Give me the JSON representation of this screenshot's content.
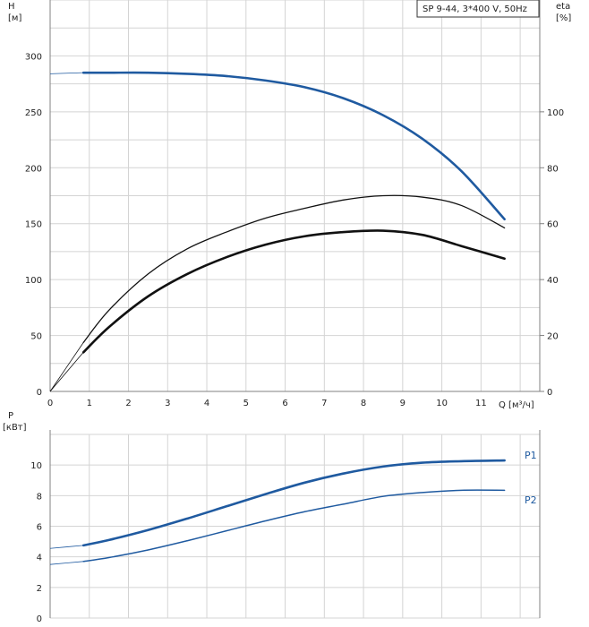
{
  "legend": "SP 9-44, 3*400 V, 50Hz",
  "colors": {
    "blue": "#1f5aa0",
    "black": "#111111",
    "grid": "#d4d4d4",
    "axis": "#808080"
  },
  "chart_data": [
    {
      "type": "line",
      "x_axis": {
        "label": "Q [м³/ч]",
        "range": [
          0,
          12.5
        ],
        "ticks": [
          0,
          1,
          2,
          3,
          4,
          5,
          6,
          7,
          8,
          9,
          10,
          11
        ]
      },
      "y_left": {
        "label_line1": "H",
        "label_line2": "[м]",
        "range": [
          0,
          350
        ],
        "ticks": [
          0,
          50,
          100,
          150,
          200,
          250,
          300
        ]
      },
      "y_right": {
        "label_line1": "eta",
        "label_line2": "[%]",
        "range": [
          0,
          140
        ],
        "ticks": [
          0,
          20,
          40,
          60,
          80,
          100
        ]
      },
      "grid": true,
      "series": [
        {
          "id": "head",
          "axis": "left",
          "color": "#1f5aa0",
          "x": [
            0.85,
            1.5,
            2.5,
            3.5,
            4.5,
            5.5,
            6.5,
            7.5,
            8.5,
            9.5,
            10.5,
            11.6
          ],
          "y": [
            285,
            285,
            285,
            284,
            282,
            278,
            272,
            262,
            247,
            226,
            197,
            154
          ],
          "extension": {
            "x": [
              0,
              0.85
            ],
            "y": [
              284,
              285
            ]
          }
        },
        {
          "id": "eta-total",
          "axis": "right",
          "color": "#111111",
          "x": [
            0.85,
            1.5,
            2.5,
            3.5,
            4.5,
            5.5,
            6.5,
            7.5,
            8.5,
            9.5,
            10.5,
            11.6
          ],
          "y": [
            14,
            23,
            34,
            42,
            48,
            52.5,
            55.5,
            57,
            57.5,
            56,
            52,
            47.5
          ],
          "extension": {
            "x": [
              0,
              0.85
            ],
            "y": [
              0,
              14
            ]
          }
        },
        {
          "id": "eta-pump",
          "axis": "right",
          "color": "#111111",
          "x": [
            0.85,
            1.5,
            2.5,
            3.5,
            4.5,
            5.5,
            6.5,
            7.5,
            8.5,
            9.5,
            10.5,
            11.6
          ],
          "y": [
            17.5,
            29,
            42,
            51,
            57,
            62,
            65.5,
            68.5,
            70,
            69.5,
            66.5,
            58.5
          ],
          "extension": {
            "x": [
              0,
              0.85
            ],
            "y": [
              0,
              17.5
            ]
          }
        }
      ]
    },
    {
      "type": "line",
      "x_axis": {
        "range": [
          0,
          12.5
        ]
      },
      "y_left": {
        "label_line1": "P",
        "label_line2": "[кВт]",
        "range": [
          0,
          12
        ],
        "ticks": [
          0,
          2,
          4,
          6,
          8,
          10
        ]
      },
      "grid": true,
      "series": [
        {
          "name": "P1",
          "color": "#1f5aa0",
          "x": [
            0.85,
            1.5,
            2.5,
            3.5,
            4.5,
            5.5,
            6.5,
            7.5,
            8.5,
            9.5,
            10.5,
            11.6
          ],
          "y": [
            4.75,
            5.1,
            5.75,
            6.5,
            7.3,
            8.1,
            8.85,
            9.45,
            9.9,
            10.15,
            10.25,
            10.3
          ],
          "extension": {
            "x": [
              0,
              0.85
            ],
            "y": [
              4.55,
              4.75
            ]
          }
        },
        {
          "name": "P2",
          "color": "#1f5aa0",
          "x": [
            0.85,
            1.5,
            2.5,
            3.5,
            4.5,
            5.5,
            6.5,
            7.5,
            8.5,
            9.5,
            10.5,
            11.6
          ],
          "y": [
            3.7,
            3.95,
            4.45,
            5.05,
            5.7,
            6.35,
            6.95,
            7.45,
            7.95,
            8.2,
            8.35,
            8.35
          ],
          "extension": {
            "x": [
              0,
              0.85
            ],
            "y": [
              3.5,
              3.7
            ]
          }
        }
      ]
    }
  ]
}
